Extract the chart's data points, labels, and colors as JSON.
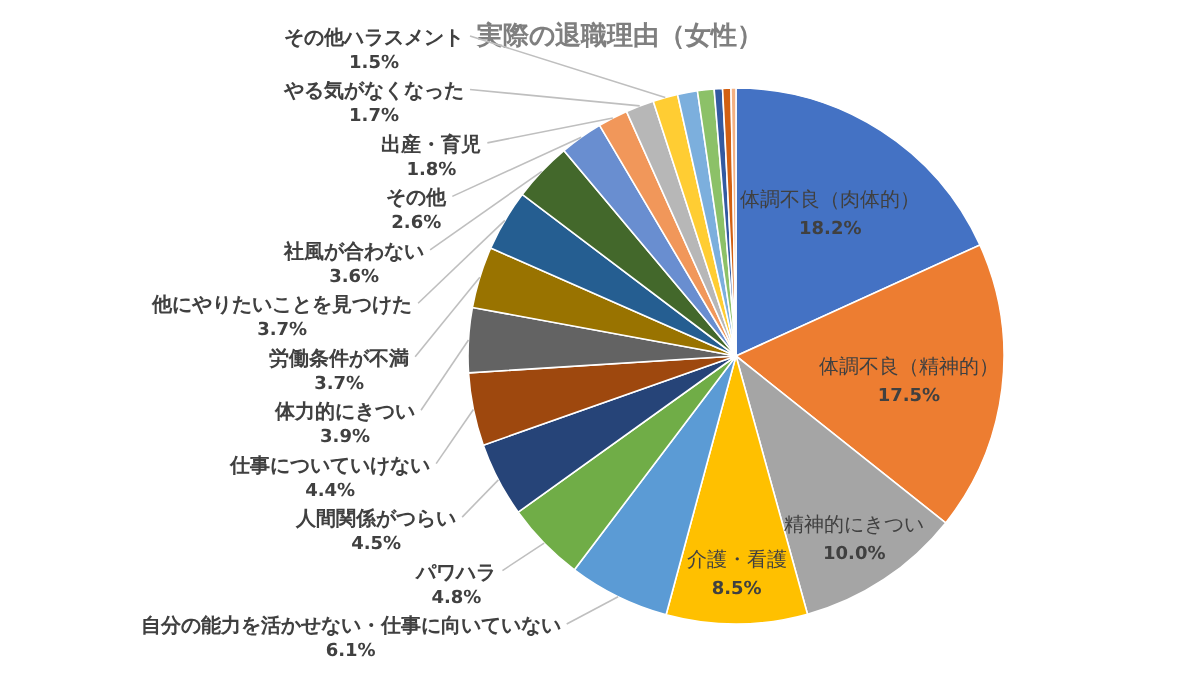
{
  "chart_data": {
    "type": "pie",
    "title": "実際の退職理由（女性）",
    "categories": [
      "体調不良（肉体的）",
      "体調不良（精神的）",
      "精神的にきつい",
      "介護・看護",
      "自分の能力を活かせない・仕事に向いていない",
      "パワハラ",
      "人間関係がつらい",
      "仕事についていけない",
      "体力的にきつい",
      "労働条件が不満",
      "他にやりたいことを見つけた",
      "社風が合わない",
      "その他",
      "出産・育児",
      "やる気がなくなった",
      "その他ハラスメント",
      null,
      null,
      null,
      null,
      null
    ],
    "values": [
      18.2,
      17.5,
      10.0,
      8.5,
      6.1,
      4.8,
      4.5,
      4.4,
      3.9,
      3.7,
      3.7,
      3.6,
      2.6,
      1.8,
      1.7,
      1.5,
      1.2,
      1.0,
      0.5,
      0.5,
      0.3
    ],
    "value_labels": [
      "18.2%",
      "17.5%",
      "10.0%",
      "8.5%",
      "6.1%",
      "4.8%",
      "4.5%",
      "4.4%",
      "3.9%",
      "3.7%",
      "3.7%",
      "3.6%",
      "2.6%",
      "1.8%",
      "1.7%",
      "1.5%",
      null,
      null,
      null,
      null,
      null
    ],
    "colors": [
      "#4472c4",
      "#ed7d31",
      "#a5a5a5",
      "#ffc000",
      "#5b9bd5",
      "#70ad47",
      "#264478",
      "#9e480e",
      "#636363",
      "#997300",
      "#255e91",
      "#43682b",
      "#698ed0",
      "#f1975a",
      "#b7b7b7",
      "#ffcd33",
      "#7cafdd",
      "#8cc168",
      "#335aa1",
      "#d26012",
      "#f4b183"
    ]
  }
}
